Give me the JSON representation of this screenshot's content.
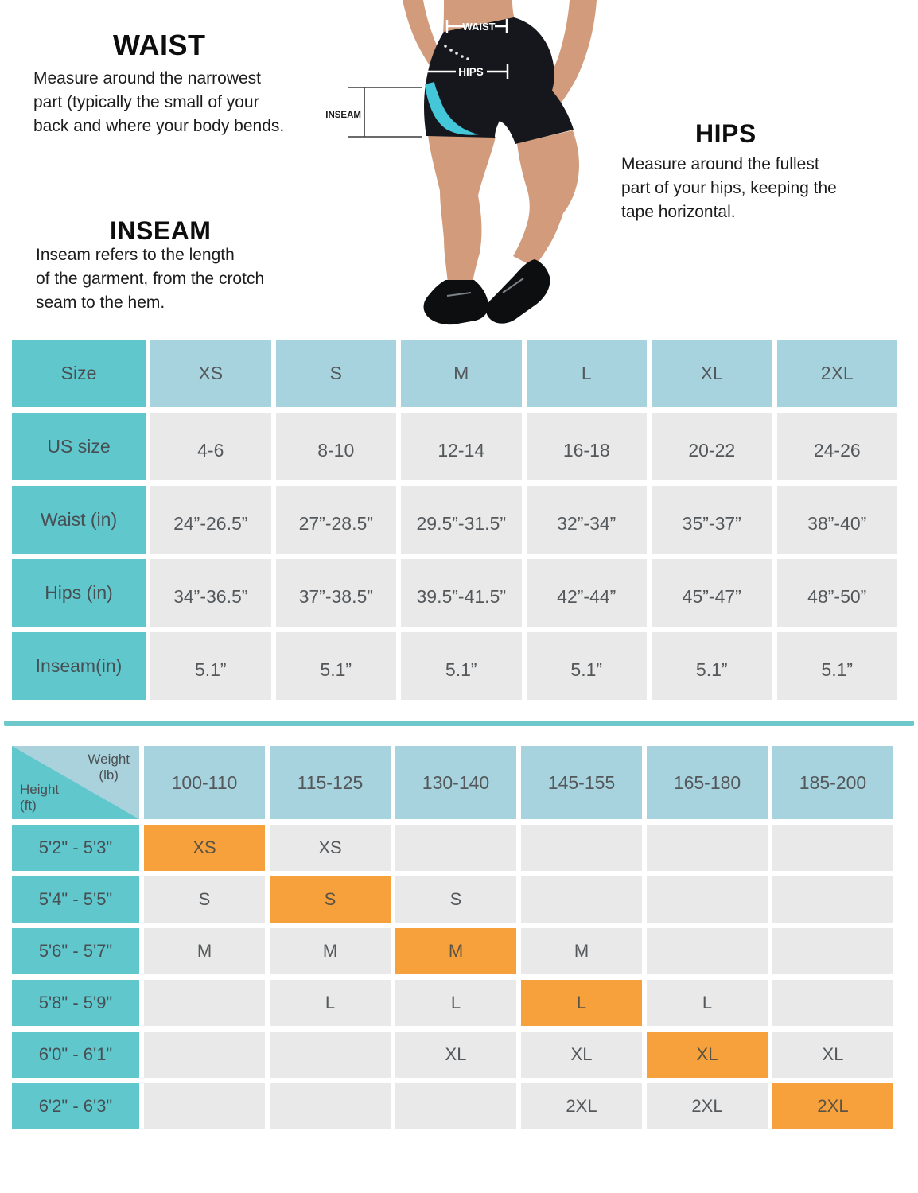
{
  "guide": {
    "waist": {
      "title": "WAIST",
      "text": "Measure around the narrowest\npart (typically the small of your\nback and where your body bends."
    },
    "inseam": {
      "title": "INSEAM",
      "text": "Inseam refers to the length\nof the garment, from the crotch\nseam to the hem."
    },
    "hips": {
      "title": "HIPS",
      "text": "Measure around the fullest\npart of your hips, keeping the\ntape horizontal."
    },
    "figure_labels": {
      "waist": "WAIST",
      "hips": "HIPS",
      "inseam": "INSEAM"
    }
  },
  "size_table": {
    "header": [
      "Size",
      "XS",
      "S",
      "M",
      "L",
      "XL",
      "2XL"
    ],
    "rows": [
      {
        "label": "US size",
        "values": [
          "4-6",
          "8-10",
          "12-14",
          "16-18",
          "20-22",
          "24-26"
        ]
      },
      {
        "label": "Waist (in)",
        "values": [
          "24”-26.5”",
          "27”-28.5”",
          "29.5”-31.5”",
          "32”-34”",
          "35”-37”",
          "38”-40”"
        ]
      },
      {
        "label": "Hips (in)",
        "values": [
          "34”-36.5”",
          "37”-38.5”",
          "39.5”-41.5”",
          "42”-44”",
          "45”-47”",
          "48”-50”"
        ]
      },
      {
        "label": "Inseam(in)",
        "values": [
          "5.1”",
          "5.1”",
          "5.1”",
          "5.1”",
          "5.1”",
          "5.1”"
        ]
      }
    ]
  },
  "fit_matrix": {
    "corner": {
      "top": "Weight\n(lb)",
      "bottom": "Height\n(ft)"
    },
    "weights": [
      "100-110",
      "115-125",
      "130-140",
      "145-155",
      "165-180",
      "185-200"
    ],
    "rows": [
      {
        "height": "5'2\" - 5'3\"",
        "cells": [
          "XS",
          "XS",
          "",
          "",
          "",
          ""
        ],
        "highlight": 0
      },
      {
        "height": "5'4\" - 5'5\"",
        "cells": [
          "S",
          "S",
          "S",
          "",
          "",
          ""
        ],
        "highlight": 1
      },
      {
        "height": "5'6\" - 5'7\"",
        "cells": [
          "M",
          "M",
          "M",
          "M",
          "",
          ""
        ],
        "highlight": 2
      },
      {
        "height": "5'8\" - 5'9\"",
        "cells": [
          "",
          "L",
          "L",
          "L",
          "L",
          ""
        ],
        "highlight": 3
      },
      {
        "height": "6'0\" - 6'1\"",
        "cells": [
          "",
          "",
          "XL",
          "XL",
          "XL",
          "XL"
        ],
        "highlight": 4
      },
      {
        "height": "6'2\" - 6'3\"",
        "cells": [
          "",
          "",
          "",
          "2XL",
          "2XL",
          "2XL"
        ],
        "highlight": 5
      }
    ]
  },
  "colors": {
    "teal": "#60c7cd",
    "light_blue": "#a6d3de",
    "corner_blue": "#a9d2dc",
    "cell_gray": "#e9e9e9",
    "orange": "#f6a13c",
    "divider": "#6ec8cb",
    "shorts_accent": "#45c7da"
  }
}
